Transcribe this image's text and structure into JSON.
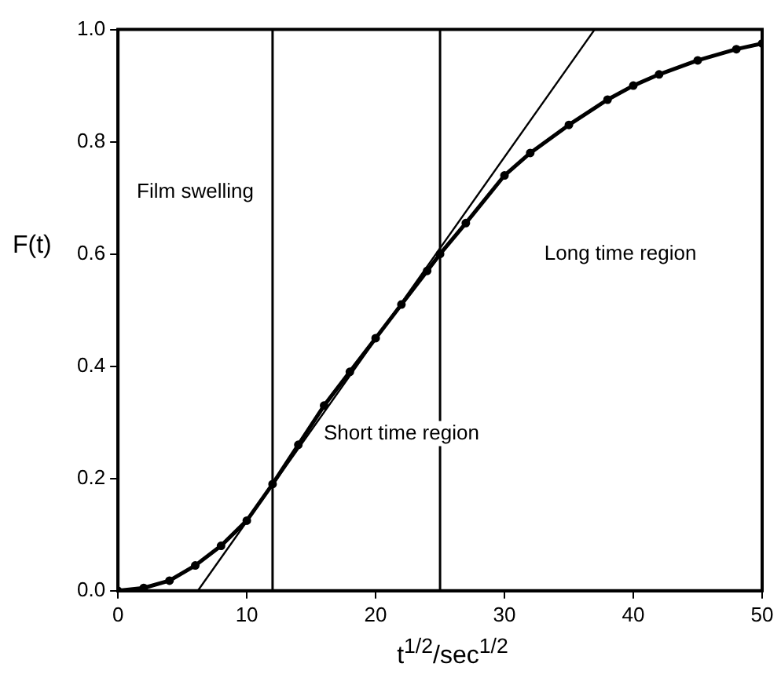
{
  "chart_data": {
    "type": "line",
    "ylabel": "F(t)",
    "xlabel": "t$^{1/2}$/sec$^{1/2}$",
    "xlim": [
      0,
      50
    ],
    "ylim": [
      0,
      1.0
    ],
    "xticks": [
      0,
      10,
      20,
      30,
      40,
      50
    ],
    "yticks": [
      {
        "value": 0,
        "label": "0.0"
      },
      {
        "value": 0.2,
        "label": "0.2"
      },
      {
        "value": 0.4,
        "label": "0.4"
      },
      {
        "value": 0.6,
        "label": "0.6"
      },
      {
        "value": 0.8,
        "label": "0.8"
      },
      {
        "value": 1.0,
        "label": "1.0"
      }
    ],
    "grid": false,
    "legend": false,
    "series": [
      {
        "type": "line",
        "color": "#000000",
        "marker": "circle",
        "x": [
          0,
          2,
          4,
          6,
          8,
          10,
          12,
          14,
          16,
          18,
          20,
          22,
          24,
          25,
          27,
          30,
          32,
          35,
          38,
          40,
          42,
          45,
          48,
          50
        ],
        "values": [
          0,
          0.005,
          0.018,
          0.045,
          0.08,
          0.125,
          0.19,
          0.26,
          0.33,
          0.39,
          0.45,
          0.51,
          0.57,
          0.6,
          0.655,
          0.74,
          0.78,
          0.83,
          0.875,
          0.9,
          0.92,
          0.945,
          0.965,
          0.975
        ]
      },
      {
        "type": "line",
        "color": "#000000",
        "marker": "none",
        "x": [
          6.2,
          37
        ],
        "values": [
          0,
          1.0
        ]
      }
    ],
    "ref_lines": [
      {
        "axis": "x",
        "value": 12
      },
      {
        "axis": "x",
        "value": 25
      }
    ],
    "annotations": [
      "Film swelling",
      "Short time region",
      "Long time region"
    ]
  }
}
